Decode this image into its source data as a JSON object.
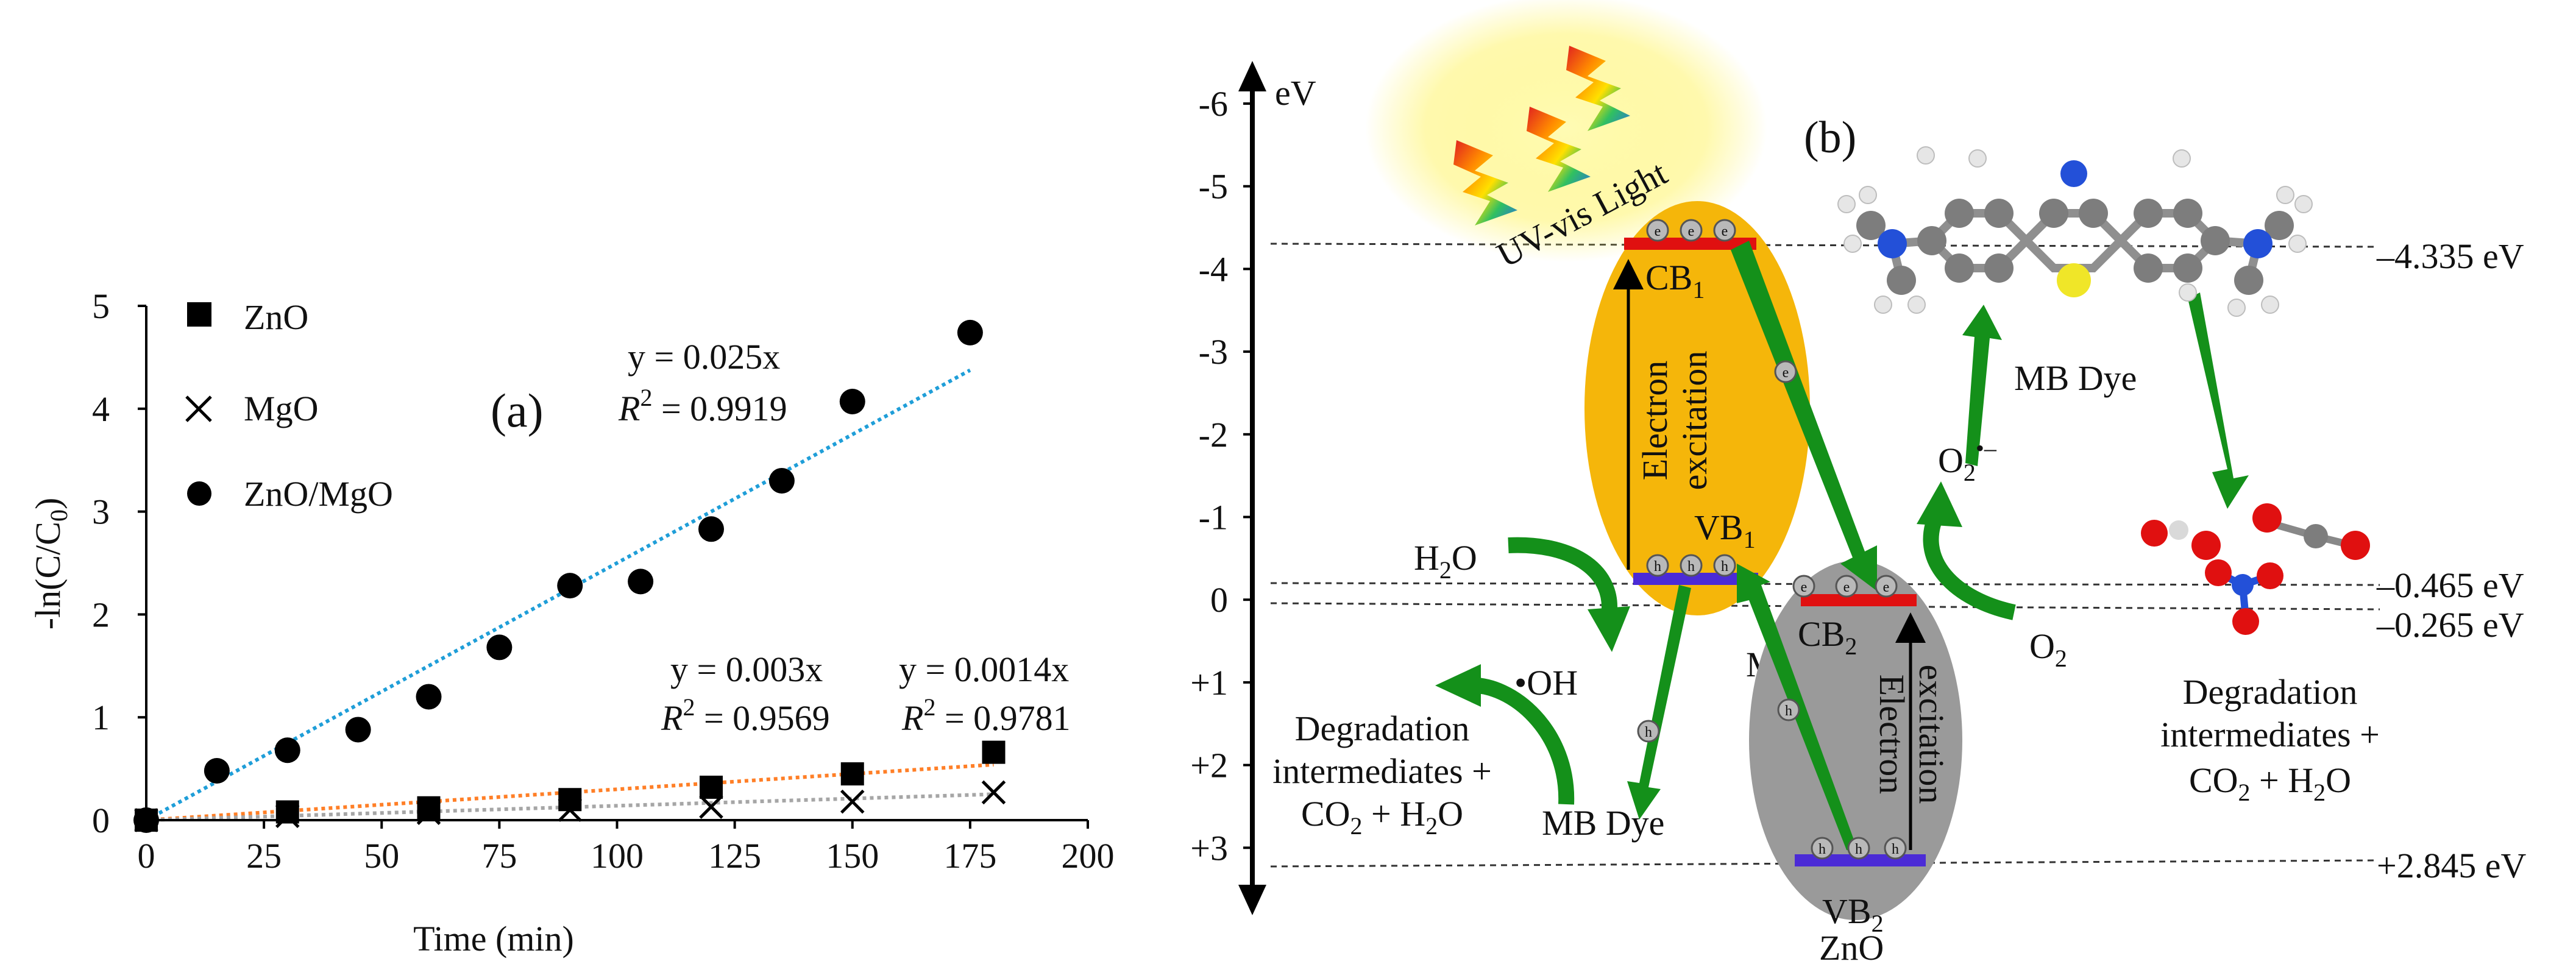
{
  "chart_data": [
    {
      "type": "scatter",
      "panel_label": "(a)",
      "xlabel": "Time (min)",
      "ylabel_main": "-ln(C/C",
      "ylabel_sub": "0",
      "ylabel_close": ")",
      "xlim": [
        0,
        200
      ],
      "ylim": [
        0,
        5
      ],
      "xticks": [
        0,
        25,
        50,
        75,
        100,
        125,
        150,
        175,
        200
      ],
      "yticks": [
        0,
        1,
        2,
        3,
        4,
        5
      ],
      "legend_position": "top-left",
      "series": [
        {
          "name": "ZnO",
          "marker": "square",
          "color": "#000000",
          "x": [
            0,
            30,
            60,
            90,
            120,
            150,
            180
          ],
          "y": [
            0,
            0.08,
            0.12,
            0.2,
            0.32,
            0.45,
            0.66
          ],
          "fit": {
            "slope": 0.003,
            "color": "#ff7f27",
            "equation": "y = 0.003x",
            "r2_label": "R",
            "r2_sup": "2",
            "r2_value": " = 0.9569"
          }
        },
        {
          "name": "MgO",
          "marker": "cross",
          "color": "#000000",
          "x": [
            0,
            30,
            60,
            90,
            120,
            150,
            180
          ],
          "y": [
            0,
            0.04,
            0.07,
            0.1,
            0.13,
            0.18,
            0.27
          ],
          "fit": {
            "slope": 0.0014,
            "color": "#a6a6a6",
            "equation": "y = 0.0014x",
            "r2_label": "R",
            "r2_sup": "2",
            "r2_value": " = 0.9781"
          }
        },
        {
          "name": "ZnO/MgO",
          "marker": "circle",
          "color": "#000000",
          "x": [
            0,
            15,
            30,
            45,
            60,
            75,
            90,
            105,
            120,
            135,
            150,
            175
          ],
          "y": [
            0,
            0.48,
            0.68,
            0.88,
            1.2,
            1.68,
            2.28,
            2.32,
            2.83,
            3.3,
            4.07,
            4.74
          ],
          "fit": {
            "slope": 0.025,
            "color": "#1f9ed8",
            "equation": "y = 0.025x",
            "r2_label": "R",
            "r2_sup": "2",
            "r2_value": " = 0.9919"
          }
        }
      ]
    },
    {
      "type": "diagram",
      "panel_label": "(b)",
      "axis_unit": "eV",
      "yticks": [
        "-6",
        "-5",
        "-4",
        "-3",
        "-2",
        "-1",
        "0",
        "+1",
        "+2",
        "+3"
      ],
      "levels": [
        "–4.335 eV",
        "–0.465 eV",
        "–0.265 eV",
        "+2.845 eV"
      ],
      "light_label": "UV-vis Light",
      "mgo": {
        "name": "MgO",
        "cb": "CB",
        "cb_sub": "1",
        "vb": "VB",
        "vb_sub": "1",
        "excitation_line1": "Electron",
        "excitation_line2": "excitation"
      },
      "zno": {
        "name": "ZnO",
        "cb": "CB",
        "cb_sub": "2",
        "vb": "VB",
        "vb_sub": "2",
        "excitation_line1": "Electron",
        "excitation_line2": "excitation"
      },
      "water": {
        "base": "H",
        "sub": "2",
        "end": "O"
      },
      "hydroxyl": "•OH",
      "o2": {
        "base": "O",
        "sub": "2"
      },
      "superoxide": {
        "base": "O",
        "sub": "2",
        "sup": "•–"
      },
      "dye_top": "MB Dye",
      "dye_bottom": "MB Dye",
      "degradation_left": {
        "line1": "Degradation",
        "line2": "intermediates +",
        "co": "CO",
        "co_sub": "2",
        "plus": " + H",
        "h_sub": "2",
        "o_end": "O"
      },
      "degradation_right": {
        "line1": "Degradation",
        "line2": "intermediates +",
        "co": "CO",
        "co_sub": "2",
        "plus": " + H",
        "h_sub": "2",
        "o_end": "O"
      },
      "electron_symbol": "e",
      "hole_symbol": "h"
    }
  ]
}
